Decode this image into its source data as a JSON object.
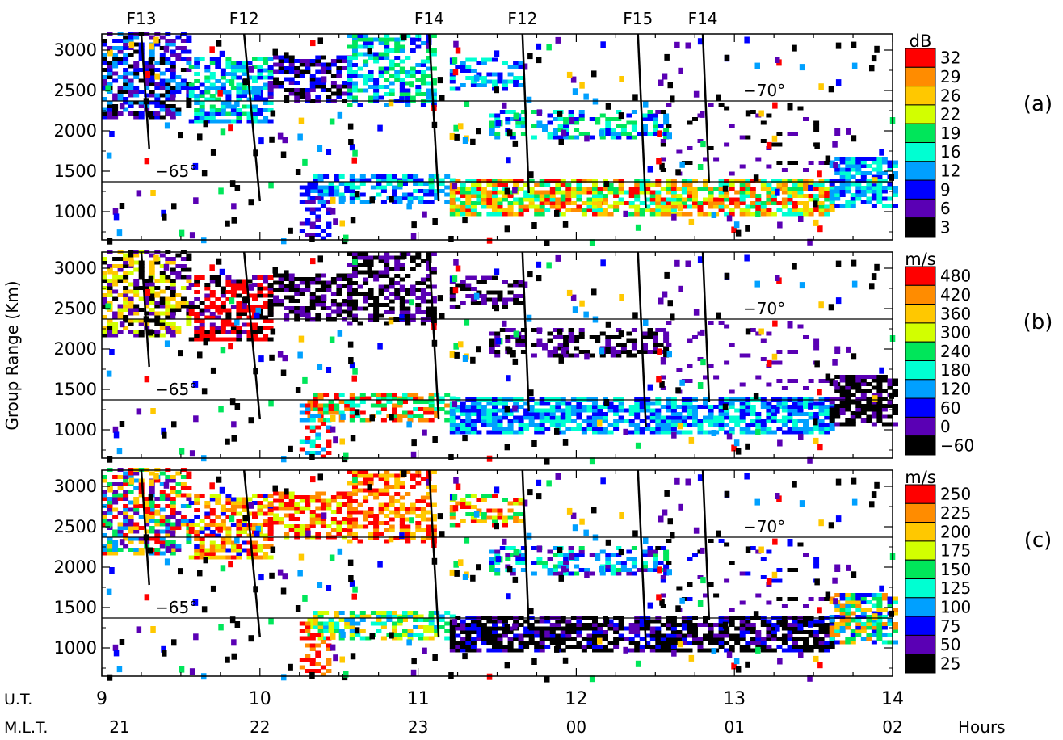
{
  "chart_data": {
    "type": "heatmap",
    "ylabel": "Group Range (Km)",
    "x_unit_label": "Hours",
    "x_rows": [
      {
        "label": "U.T.",
        "ticks": [
          9,
          10,
          11,
          12,
          13,
          14
        ],
        "tick_labels": [
          "9",
          "10",
          "11",
          "12",
          "13",
          "14"
        ]
      },
      {
        "label": "M.L.T.",
        "ticks": [
          9,
          10,
          11,
          12,
          13,
          14
        ],
        "tick_labels": [
          "21",
          "22",
          "23",
          "00",
          "01",
          "02"
        ]
      }
    ],
    "xlim": [
      9,
      14
    ],
    "ylim": [
      650,
      3200
    ],
    "yticks": [
      1000,
      1500,
      2000,
      2500,
      3000
    ],
    "satellite_passes": [
      {
        "name": "F13",
        "top": {
          "x": 9.25,
          "y": 3200
        },
        "bottom": {
          "x": 9.3,
          "y": 1780
        }
      },
      {
        "name": "F12",
        "top": {
          "x": 9.9,
          "y": 3200
        },
        "bottom": {
          "x": 10.0,
          "y": 1130
        }
      },
      {
        "name": "F14",
        "top": {
          "x": 11.07,
          "y": 3200
        },
        "bottom": {
          "x": 11.13,
          "y": 1130
        }
      },
      {
        "name": "F12",
        "top": {
          "x": 11.66,
          "y": 3200
        },
        "bottom": {
          "x": 11.7,
          "y": 1230
        }
      },
      {
        "name": "F15",
        "top": {
          "x": 12.39,
          "y": 3200
        },
        "bottom": {
          "x": 12.44,
          "y": 1040
        }
      },
      {
        "name": "F14",
        "top": {
          "x": 12.8,
          "y": 3200
        },
        "bottom": {
          "x": 12.84,
          "y": 1350
        }
      }
    ],
    "latitude_lines": [
      {
        "label": "−65°",
        "range": 1370
      },
      {
        "label": "−70°",
        "range": 2370
      }
    ],
    "panels": [
      {
        "id": "power",
        "panel_label": "(a)",
        "unit": "dB",
        "colorbar_ticks": [
          "32",
          "29",
          "26",
          "22",
          "19",
          "16",
          "12",
          "9",
          "6",
          "3"
        ]
      },
      {
        "id": "velocity",
        "panel_label": "(b)",
        "unit": "m/s",
        "colorbar_ticks": [
          "480",
          "420",
          "360",
          "300",
          "240",
          "180",
          "120",
          "60",
          "0",
          "−60"
        ]
      },
      {
        "id": "width",
        "panel_label": "(c)",
        "unit": "m/s",
        "colorbar_ticks": [
          "250",
          "225",
          "200",
          "175",
          "150",
          "125",
          "100",
          "75",
          "50",
          "25"
        ]
      }
    ],
    "colorscale": [
      "#ff0000",
      "#ff8c00",
      "#ffc800",
      "#d2ff00",
      "#00e65a",
      "#00ffd2",
      "#00a0ff",
      "#0000ff",
      "#5a00b4",
      "#000000"
    ]
  }
}
